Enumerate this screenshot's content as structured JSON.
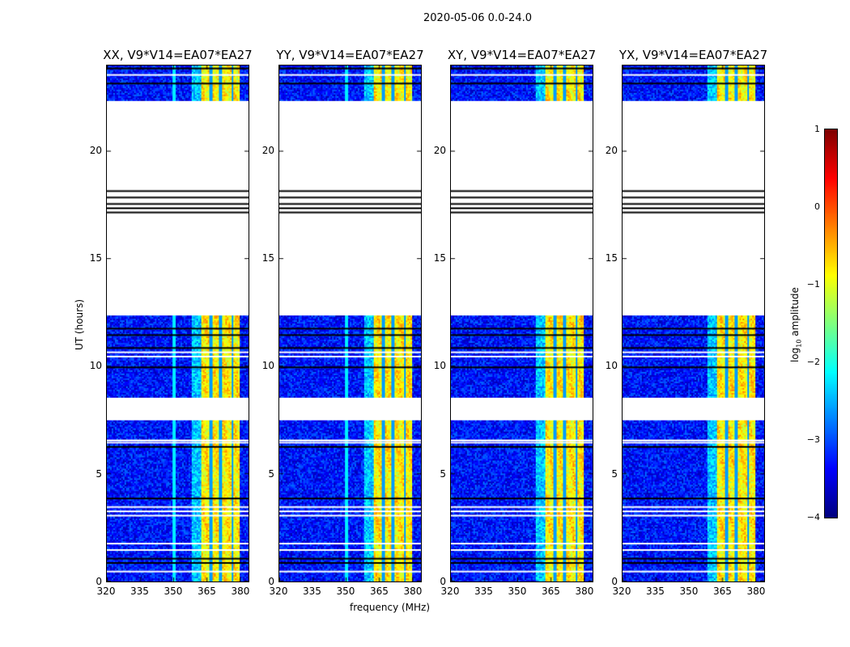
{
  "suptitle": "2020-05-06 0.0-24.0",
  "chart_data": {
    "type": "heatmap",
    "xlabel": "frequency (MHz)",
    "ylabel": "UT (hours)",
    "xlim": [
      320,
      384
    ],
    "ylim": [
      0,
      24
    ],
    "xticks": [
      "320",
      "335",
      "350",
      "365",
      "380"
    ],
    "yticks": [
      "0",
      "5",
      "10",
      "15",
      "20"
    ],
    "panels": [
      {
        "title": "XX, V9*V14=EA07*EA27",
        "seed": 1
      },
      {
        "title": "YY, V9*V14=EA07*EA27",
        "seed": 2
      },
      {
        "title": "XY, V9*V14=EA07*EA27",
        "seed": 3
      },
      {
        "title": "YX, V9*V14=EA07*EA27",
        "seed": 4
      }
    ],
    "data_segments_hours": [
      [
        0,
        7.5
      ],
      [
        8.6,
        12.4
      ],
      [
        22.4,
        24
      ]
    ],
    "flagged_white_hours": [
      0.5,
      1.5,
      1.8,
      3.1,
      3.3,
      3.5,
      6.5,
      6.6,
      8.5,
      10.5,
      10.7,
      23.6
    ],
    "flagged_black_hours": [
      0.9,
      1.1,
      3.9,
      6.3,
      10.0,
      10.9,
      11.5,
      11.8,
      17.2,
      17.4,
      17.6,
      17.9,
      18.2,
      23.2,
      23.9
    ],
    "bright_band_mhz": [
      362,
      380
    ],
    "background_log_amp": -3.3,
    "band_log_amp": -0.8,
    "colorbar": {
      "label": "log10 amplitude",
      "label_main": "log",
      "label_sub": "10",
      "label_rest": " amplitude",
      "range": [
        -4,
        1
      ],
      "ticks": [
        "1",
        "0",
        "−1",
        "−2",
        "−3",
        "−4"
      ],
      "colormap": "jet"
    }
  }
}
